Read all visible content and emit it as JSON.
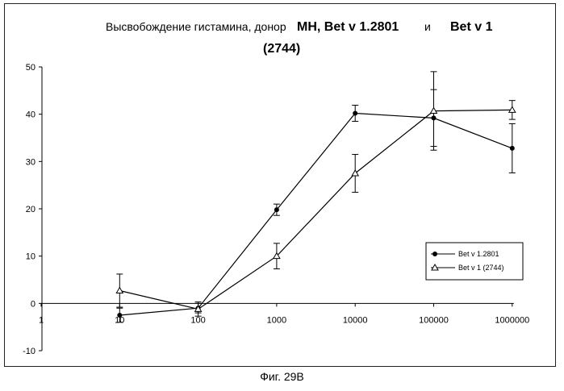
{
  "chart_data": {
    "type": "line",
    "title_main": "Высвобождение гистамина, донор",
    "title_bold": "MH, Bet v 1.2801",
    "title_and": "и",
    "title_bold2": "Bet v 1",
    "title_line2": "(2744)",
    "x_scale": "log",
    "x_ticks": [
      1,
      10,
      100,
      1000,
      10000,
      100000,
      1000000
    ],
    "x_tick_labels": [
      "1",
      "10",
      "100",
      "1000",
      "10000",
      "100000",
      "1000000"
    ],
    "ylim": [
      -10,
      50
    ],
    "y_ticks": [
      -10,
      0,
      10,
      20,
      30,
      40,
      50
    ],
    "y_tick_labels": [
      "-10",
      "0",
      "10",
      "20",
      "30",
      "40",
      "50"
    ],
    "legend_position": "right",
    "series": [
      {
        "name": "Bet v 1.2801",
        "marker": "filled-circle",
        "x": [
          10,
          100,
          1000,
          10000,
          100000,
          1000000
        ],
        "y": [
          -2.5,
          -1.0,
          19.8,
          40.2,
          39.2,
          32.8
        ],
        "err": [
          1.5,
          1.0,
          1.2,
          1.7,
          6.0,
          5.2
        ]
      },
      {
        "name": "Bet v 1 (2744)",
        "marker": "open-triangle",
        "x": [
          10,
          100,
          1000,
          10000,
          100000,
          1000000
        ],
        "y": [
          2.7,
          -1.2,
          10.0,
          27.5,
          40.7,
          40.9
        ],
        "err": [
          3.5,
          1.5,
          2.7,
          4.0,
          8.3,
          2.0
        ]
      }
    ]
  },
  "caption": "Фиг. 29В"
}
